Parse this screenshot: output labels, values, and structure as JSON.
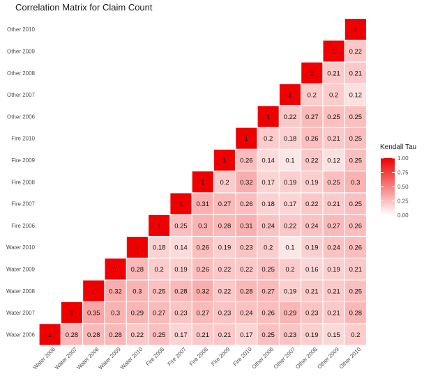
{
  "chart_data": {
    "type": "heatmap",
    "title": "Correlation Matrix for Claim Count",
    "xlabel": "",
    "ylabel": "",
    "labels": [
      "Water 2006",
      "Water 2007",
      "Water 2008",
      "Water 2009",
      "Water 2010",
      "Fire 2006",
      "Fire 2007",
      "Fire 2008",
      "Fire 2009",
      "Fire 2010",
      "Other 2006",
      "Other 2007",
      "Other 2008",
      "Other 2009",
      "Other 2010"
    ],
    "matrix_rows": [
      {
        "row": "Water 2006",
        "values": [
          1,
          0.28,
          0.28,
          0.28,
          0.22,
          0.25,
          0.17,
          0.21,
          0.21,
          0.17,
          0.25,
          0.23,
          0.19,
          0.15,
          0.2
        ]
      },
      {
        "row": "Water 2007",
        "values": [
          1,
          0.35,
          0.3,
          0.29,
          0.27,
          0.23,
          0.27,
          0.23,
          0.24,
          0.26,
          0.29,
          0.23,
          0.21,
          0.28
        ]
      },
      {
        "row": "Water 2008",
        "values": [
          1,
          0.32,
          0.3,
          0.25,
          0.28,
          0.32,
          0.22,
          0.28,
          0.27,
          0.19,
          0.21,
          0.21,
          0.25
        ]
      },
      {
        "row": "Water 2009",
        "values": [
          1,
          0.28,
          0.2,
          0.19,
          0.26,
          0.22,
          0.22,
          0.25,
          0.2,
          0.16,
          0.19,
          0.21
        ]
      },
      {
        "row": "Water 2010",
        "values": [
          1,
          0.18,
          0.14,
          0.26,
          0.19,
          0.23,
          0.2,
          0.1,
          0.19,
          0.24,
          0.26
        ]
      },
      {
        "row": "Fire 2006",
        "values": [
          1,
          0.25,
          0.3,
          0.28,
          0.31,
          0.24,
          0.22,
          0.24,
          0.27,
          0.26
        ]
      },
      {
        "row": "Fire 2007",
        "values": [
          1,
          0.31,
          0.27,
          0.26,
          0.18,
          0.17,
          0.22,
          0.21,
          0.25
        ]
      },
      {
        "row": "Fire 2008",
        "values": [
          1,
          0.2,
          0.32,
          0.17,
          0.19,
          0.19,
          0.25,
          0.3
        ]
      },
      {
        "row": "Fire 2009",
        "values": [
          1,
          0.26,
          0.14,
          0.1,
          0.22,
          0.12,
          0.25
        ]
      },
      {
        "row": "Fire 2010",
        "values": [
          1,
          0.2,
          0.18,
          0.26,
          0.21,
          0.25
        ]
      },
      {
        "row": "Other 2006",
        "values": [
          1,
          0.22,
          0.27,
          0.25,
          0.25
        ]
      },
      {
        "row": "Other 2007",
        "values": [
          1,
          0.2,
          0.2,
          0.12
        ]
      },
      {
        "row": "Other 2008",
        "values": [
          1,
          0.21,
          0.21
        ]
      },
      {
        "row": "Other 2009",
        "values": [
          1,
          0.22
        ]
      },
      {
        "row": "Other 2010",
        "values": [
          1
        ]
      }
    ],
    "value_range": [
      0,
      1
    ],
    "legend": {
      "title": "Kendall Tau",
      "ticks": [
        "1.00",
        "0.75",
        "0.50",
        "0.25",
        "0.00"
      ],
      "placement": "right",
      "color_low": "#ffffff",
      "color_high": "#ee0000"
    },
    "grid": false
  }
}
